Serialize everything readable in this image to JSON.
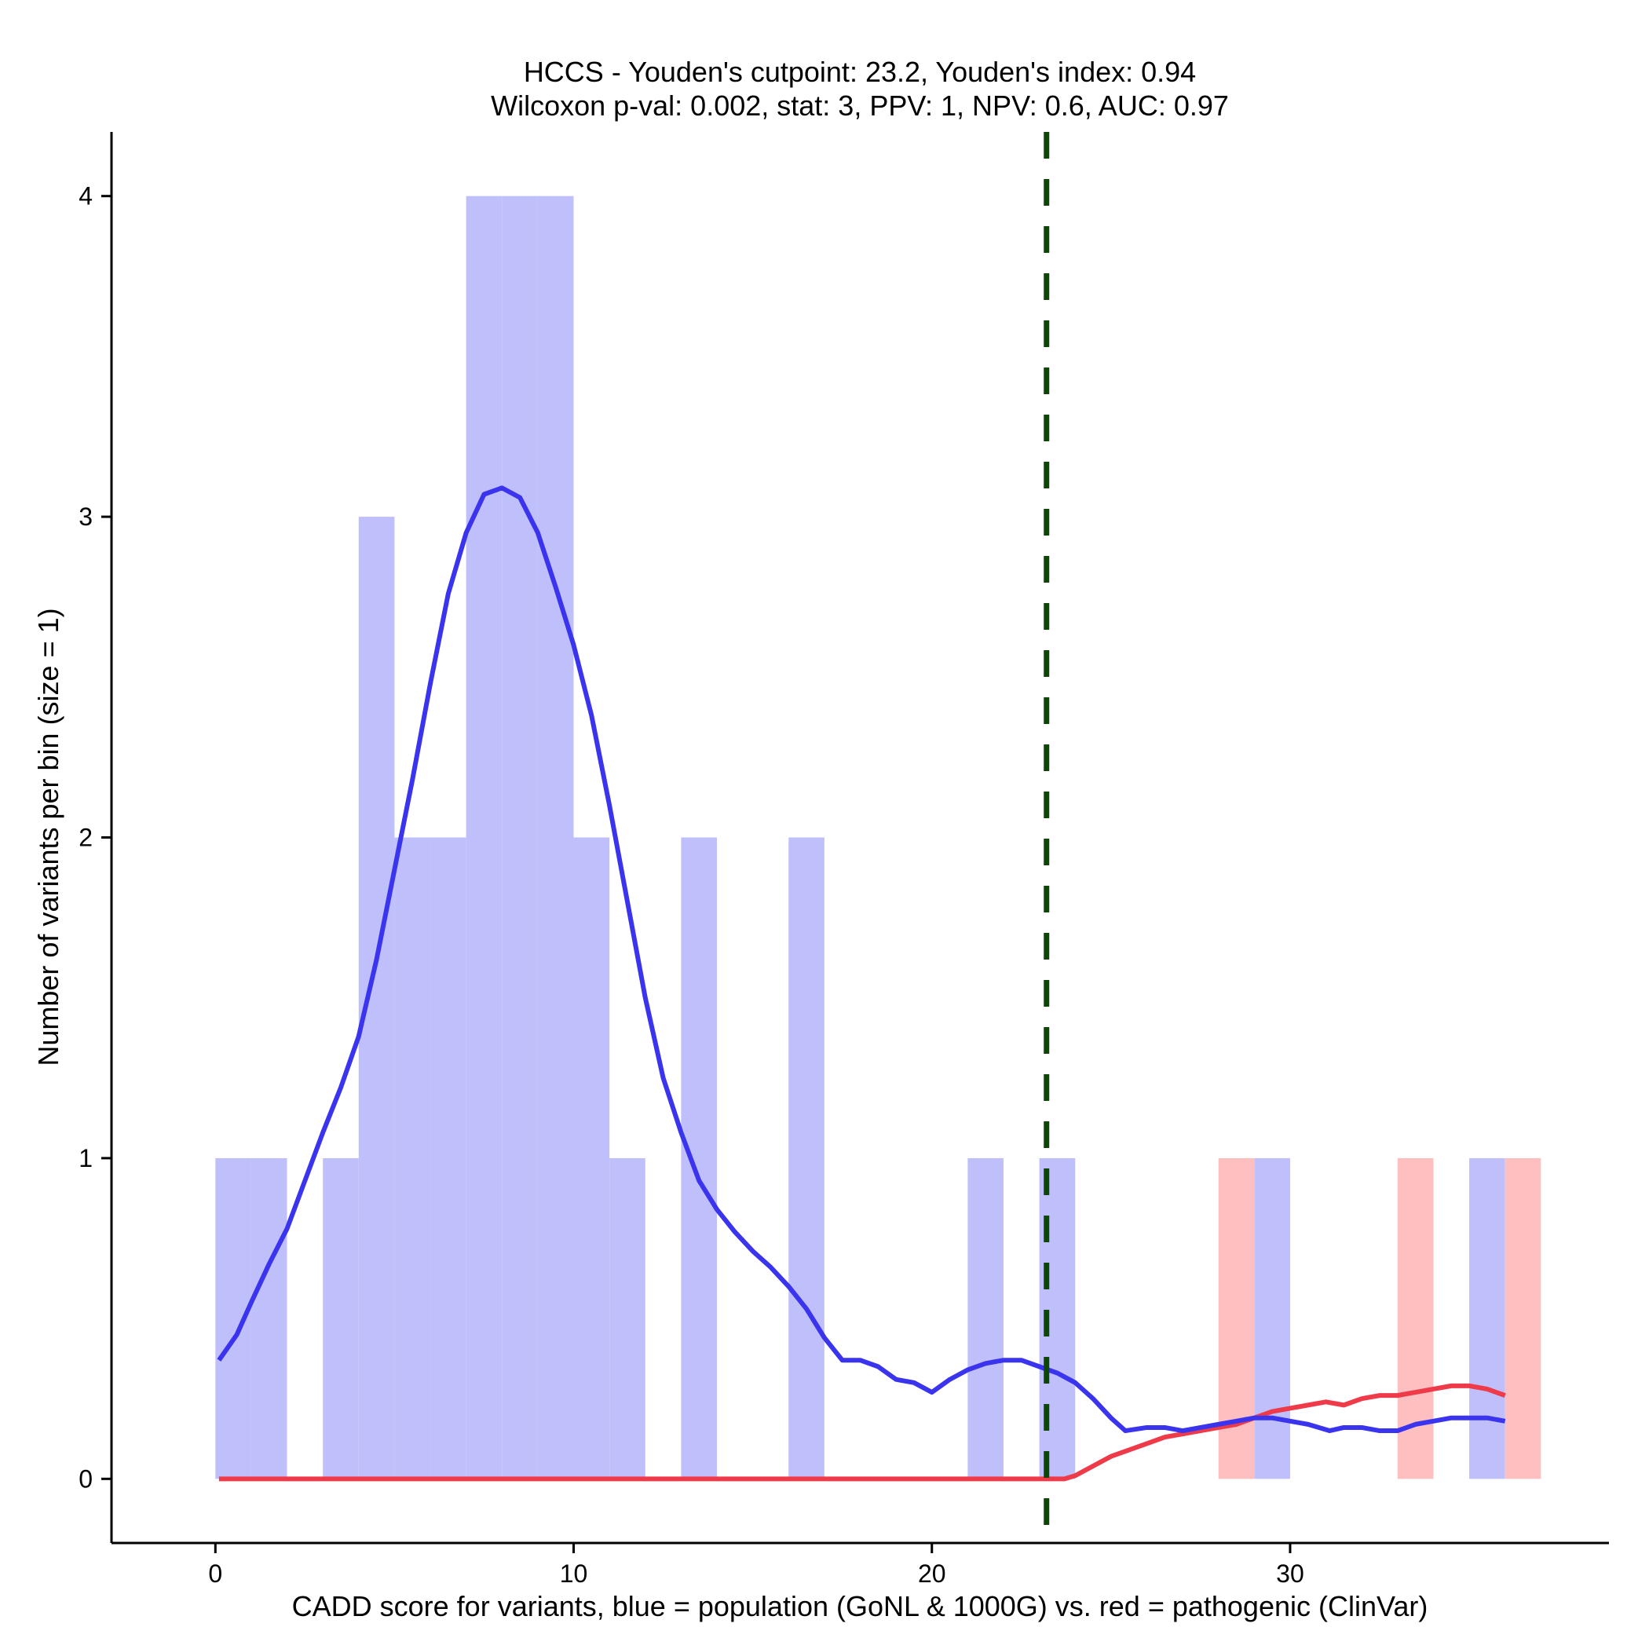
{
  "chart_data": {
    "type": "bar",
    "title_line1": "HCCS - Youden's cutpoint: 23.2, Youden's index: 0.94",
    "title_line2": "Wilcoxon p-val: 0.002, stat: 3, PPV: 1, NPV: 0.6, AUC: 0.97",
    "xlabel": "CADD score for variants, blue = population (GoNL & 1000G) vs. red = pathogenic (ClinVar)",
    "ylabel": "Number of variants per bin (size = 1)",
    "xlim": [
      -2.9,
      38.9
    ],
    "ylim": [
      -0.2,
      4.2
    ],
    "x_ticks": [
      0,
      10,
      20,
      30
    ],
    "x_tick_labels": [
      "0",
      "10",
      "20",
      "30"
    ],
    "y_ticks": [
      0,
      1,
      2,
      3,
      4
    ],
    "y_tick_labels": [
      "0",
      "1",
      "2",
      "3",
      "4"
    ],
    "bin_size": 1,
    "cutpoint": 23.2,
    "colors": {
      "population_bar": "#bfbffc",
      "pathogenic_bar": "#fdbfbf",
      "population_line": "#3b34ee",
      "pathogenic_line": "#ef3b49",
      "cutpoint_line": "#0d4706"
    },
    "series": [
      {
        "name": "population (GoNL & 1000G)",
        "bins": [
          {
            "start": 0,
            "count": 1
          },
          {
            "start": 1,
            "count": 1
          },
          {
            "start": 3,
            "count": 1
          },
          {
            "start": 4,
            "count": 3
          },
          {
            "start": 5,
            "count": 2
          },
          {
            "start": 6,
            "count": 2
          },
          {
            "start": 7,
            "count": 4
          },
          {
            "start": 8,
            "count": 4
          },
          {
            "start": 9,
            "count": 4
          },
          {
            "start": 10,
            "count": 2
          },
          {
            "start": 11,
            "count": 1
          },
          {
            "start": 13,
            "count": 2
          },
          {
            "start": 16,
            "count": 2
          },
          {
            "start": 21,
            "count": 1
          },
          {
            "start": 23,
            "count": 1
          },
          {
            "start": 29,
            "count": 1
          },
          {
            "start": 35,
            "count": 1
          }
        ],
        "density": [
          [
            0.1,
            0.37
          ],
          [
            0.6,
            0.45
          ],
          [
            1.0,
            0.55
          ],
          [
            1.5,
            0.67
          ],
          [
            2.0,
            0.78
          ],
          [
            2.5,
            0.93
          ],
          [
            3.0,
            1.08
          ],
          [
            3.5,
            1.22
          ],
          [
            4.0,
            1.38
          ],
          [
            4.5,
            1.62
          ],
          [
            5.0,
            1.9
          ],
          [
            5.5,
            2.18
          ],
          [
            6.0,
            2.48
          ],
          [
            6.5,
            2.76
          ],
          [
            7.0,
            2.95
          ],
          [
            7.5,
            3.07
          ],
          [
            8.0,
            3.09
          ],
          [
            8.5,
            3.06
          ],
          [
            9.0,
            2.95
          ],
          [
            9.5,
            2.78
          ],
          [
            10.0,
            2.6
          ],
          [
            10.5,
            2.38
          ],
          [
            11.0,
            2.1
          ],
          [
            11.5,
            1.8
          ],
          [
            12.0,
            1.5
          ],
          [
            12.5,
            1.25
          ],
          [
            13.0,
            1.08
          ],
          [
            13.5,
            0.93
          ],
          [
            14.0,
            0.84
          ],
          [
            14.5,
            0.77
          ],
          [
            15.0,
            0.71
          ],
          [
            15.5,
            0.66
          ],
          [
            16.0,
            0.6
          ],
          [
            16.5,
            0.53
          ],
          [
            17.0,
            0.44
          ],
          [
            17.5,
            0.37
          ],
          [
            18.0,
            0.37
          ],
          [
            18.5,
            0.35
          ],
          [
            19.0,
            0.31
          ],
          [
            19.5,
            0.3
          ],
          [
            20.0,
            0.27
          ],
          [
            20.5,
            0.31
          ],
          [
            21.0,
            0.34
          ],
          [
            21.5,
            0.36
          ],
          [
            22.0,
            0.37
          ],
          [
            22.5,
            0.37
          ],
          [
            23.0,
            0.35
          ],
          [
            23.5,
            0.33
          ],
          [
            24.0,
            0.3
          ],
          [
            24.5,
            0.25
          ],
          [
            25.0,
            0.19
          ],
          [
            25.4,
            0.15
          ],
          [
            26.0,
            0.16
          ],
          [
            26.5,
            0.16
          ],
          [
            27.0,
            0.15
          ],
          [
            27.5,
            0.16
          ],
          [
            28.0,
            0.17
          ],
          [
            28.5,
            0.18
          ],
          [
            29.0,
            0.19
          ],
          [
            29.5,
            0.19
          ],
          [
            30.0,
            0.18
          ],
          [
            30.5,
            0.17
          ],
          [
            31.1,
            0.15
          ],
          [
            31.5,
            0.16
          ],
          [
            32.0,
            0.16
          ],
          [
            32.5,
            0.15
          ],
          [
            33.0,
            0.15
          ],
          [
            33.5,
            0.17
          ],
          [
            34.0,
            0.18
          ],
          [
            34.5,
            0.19
          ],
          [
            35.0,
            0.19
          ],
          [
            35.5,
            0.19
          ],
          [
            36.0,
            0.18
          ]
        ]
      },
      {
        "name": "pathogenic (ClinVar)",
        "bins": [
          {
            "start": 28,
            "count": 1
          },
          {
            "start": 33,
            "count": 1
          },
          {
            "start": 36,
            "count": 1
          }
        ],
        "density": [
          [
            0.1,
            0.0
          ],
          [
            5.0,
            0.0
          ],
          [
            10.0,
            0.0
          ],
          [
            15.0,
            0.0
          ],
          [
            20.0,
            0.0
          ],
          [
            23.7,
            0.0
          ],
          [
            24.0,
            0.01
          ],
          [
            24.5,
            0.04
          ],
          [
            25.0,
            0.07
          ],
          [
            25.5,
            0.09
          ],
          [
            26.0,
            0.11
          ],
          [
            26.5,
            0.13
          ],
          [
            27.0,
            0.14
          ],
          [
            27.5,
            0.15
          ],
          [
            28.0,
            0.16
          ],
          [
            28.5,
            0.17
          ],
          [
            29.0,
            0.19
          ],
          [
            29.5,
            0.21
          ],
          [
            30.0,
            0.22
          ],
          [
            30.5,
            0.23
          ],
          [
            31.0,
            0.24
          ],
          [
            31.5,
            0.23
          ],
          [
            32.0,
            0.25
          ],
          [
            32.5,
            0.26
          ],
          [
            33.0,
            0.26
          ],
          [
            33.5,
            0.27
          ],
          [
            34.0,
            0.28
          ],
          [
            34.5,
            0.29
          ],
          [
            35.0,
            0.29
          ],
          [
            35.5,
            0.28
          ],
          [
            36.0,
            0.26
          ]
        ]
      }
    ]
  }
}
